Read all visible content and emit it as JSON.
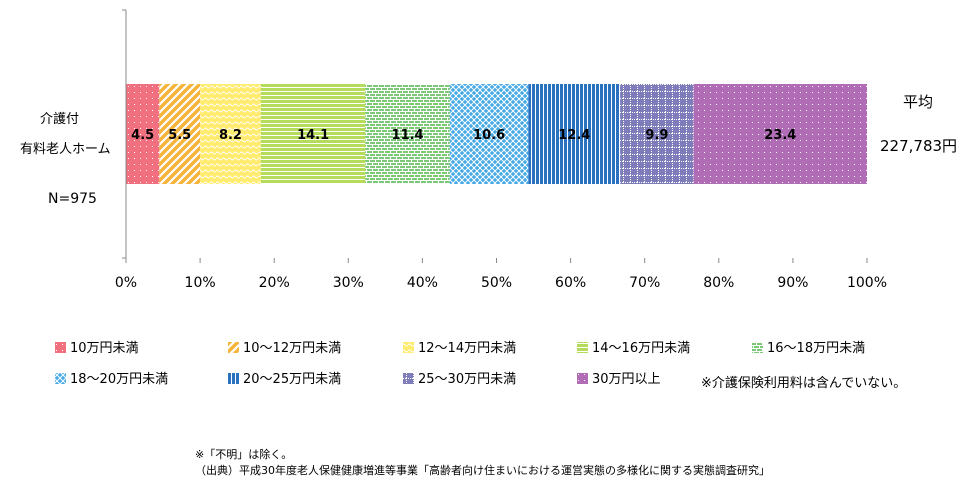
{
  "chart_data": {
    "type": "bar",
    "orientation": "horizontal-stacked-100",
    "categories": [
      "介護付\n有料老人ホーム"
    ],
    "category_lines": [
      "介護付",
      "有料老人ホーム"
    ],
    "n_label": "N=975",
    "series": [
      {
        "name": "10万円未満",
        "values": [
          4.5
        ],
        "color": "#f07080",
        "pattern": "dots"
      },
      {
        "name": "10～12万円未満",
        "values": [
          5.5
        ],
        "color": "#f5b43c",
        "pattern": "diagonal"
      },
      {
        "name": "12～14万円未満",
        "values": [
          8.2
        ],
        "color": "#ffeb6e",
        "pattern": "wave"
      },
      {
        "name": "14～16万円未満",
        "values": [
          14.1
        ],
        "color": "#b4dc5a",
        "pattern": "horizontal"
      },
      {
        "name": "16～18万円未満",
        "values": [
          11.4
        ],
        "color": "#7dc878",
        "pattern": "brick"
      },
      {
        "name": "18～20万円未満",
        "values": [
          10.6
        ],
        "color": "#46aae6",
        "pattern": "diamond"
      },
      {
        "name": "20～25万円未満",
        "values": [
          12.4
        ],
        "color": "#2a72c0",
        "pattern": "vertical"
      },
      {
        "name": "25～30万円未満",
        "values": [
          9.9
        ],
        "color": "#7f7cbc",
        "pattern": "grid"
      },
      {
        "name": "30万円以上",
        "values": [
          23.4
        ],
        "color": "#b06cb4",
        "pattern": "dots"
      }
    ],
    "xlim": [
      0,
      100
    ],
    "x_ticks": [
      "0%",
      "10%",
      "20%",
      "30%",
      "40%",
      "50%",
      "60%",
      "70%",
      "80%",
      "90%",
      "100%"
    ],
    "grid": false,
    "legend_placement": "bottom",
    "annotation_avg_label": "平均",
    "annotation_avg_value": "227,783円",
    "legend_note": "※介護保険利用料は含んでいない。"
  },
  "footnotes": [
    "※「不明」は除く。",
    "（出典）平成30年度老人保健健康増進等事業「高齢者向け住まいにおける運営実態の多様化に関する実態調査研究」"
  ]
}
